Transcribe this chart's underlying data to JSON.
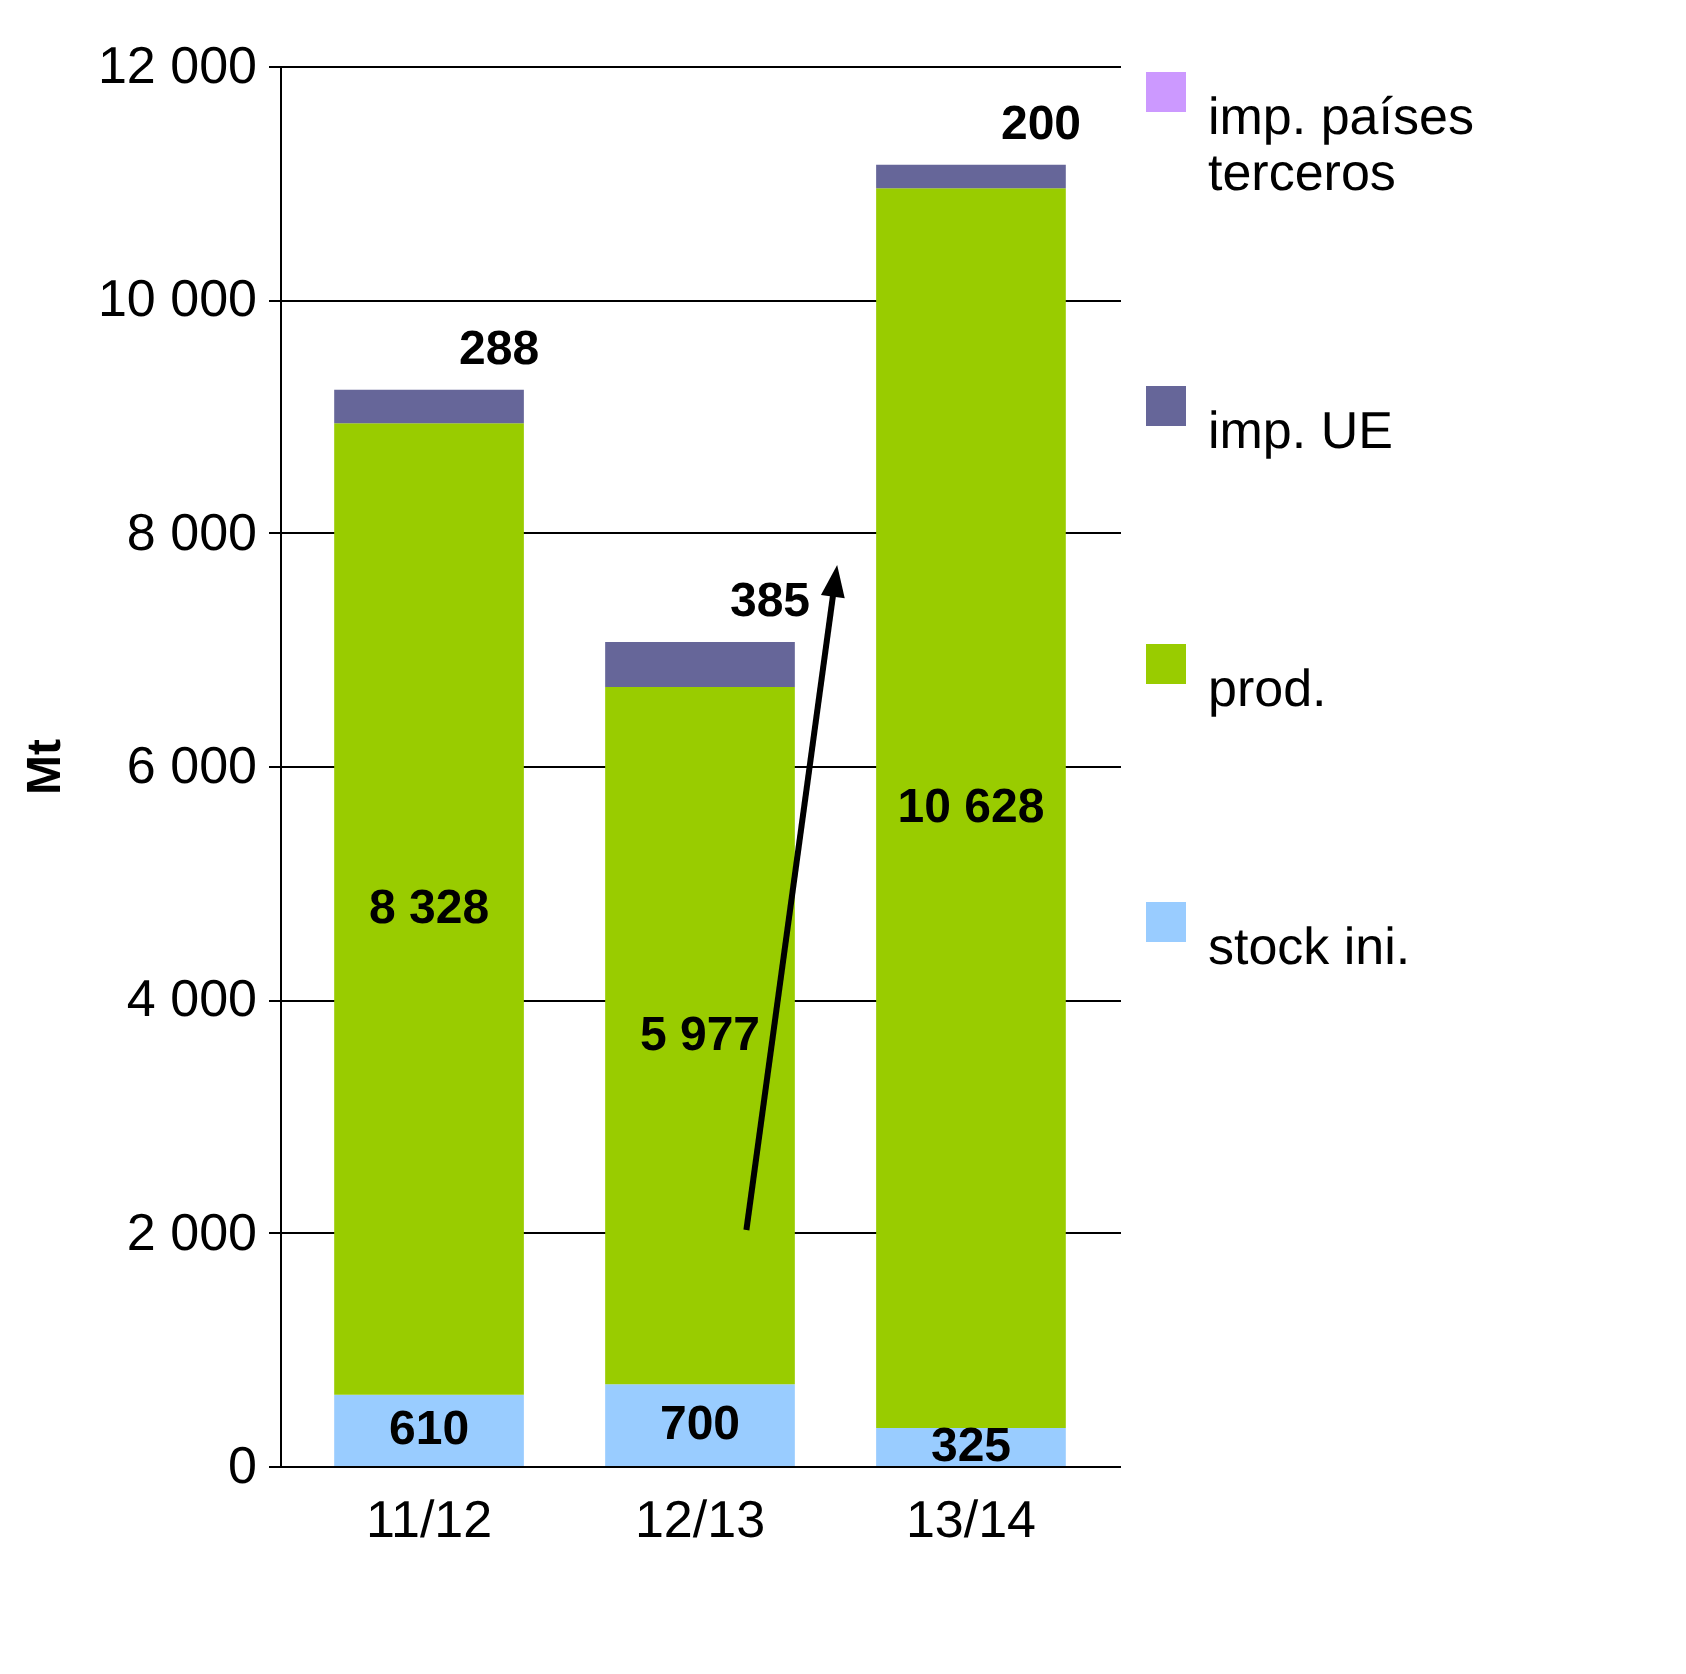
{
  "chart_data": {
    "type": "bar",
    "stacked": true,
    "categories": [
      "11/12",
      "12/13",
      "13/14"
    ],
    "series": [
      {
        "name": "stock ini.",
        "color": "#99ccff",
        "values": [
          610,
          700,
          325
        ],
        "value_labels": [
          "610",
          "700",
          "325"
        ]
      },
      {
        "name": "prod.",
        "color": "#99cc00",
        "values": [
          8328,
          5977,
          10628
        ],
        "value_labels": [
          "8 328",
          "5 977",
          "10 628"
        ]
      },
      {
        "name": "imp. UE",
        "color": "#666699",
        "values": [
          288,
          385,
          200
        ],
        "value_labels": [
          "288",
          "385",
          "200"
        ]
      },
      {
        "name": "imp. países terceros",
        "color": "#cc99ff",
        "values": [
          null,
          null,
          null
        ]
      }
    ],
    "ylabel": "Mt",
    "ylim": [
      0,
      12000
    ],
    "yticks": [
      {
        "value": 0,
        "label": "0"
      },
      {
        "value": 2000,
        "label": "2 000"
      },
      {
        "value": 4000,
        "label": "4 000"
      },
      {
        "value": 6000,
        "label": "6 000"
      },
      {
        "value": 8000,
        "label": "8 000"
      },
      {
        "value": 10000,
        "label": "10 000"
      },
      {
        "value": 12000,
        "label": "12 000"
      }
    ],
    "grid": "y",
    "legend": "right"
  }
}
